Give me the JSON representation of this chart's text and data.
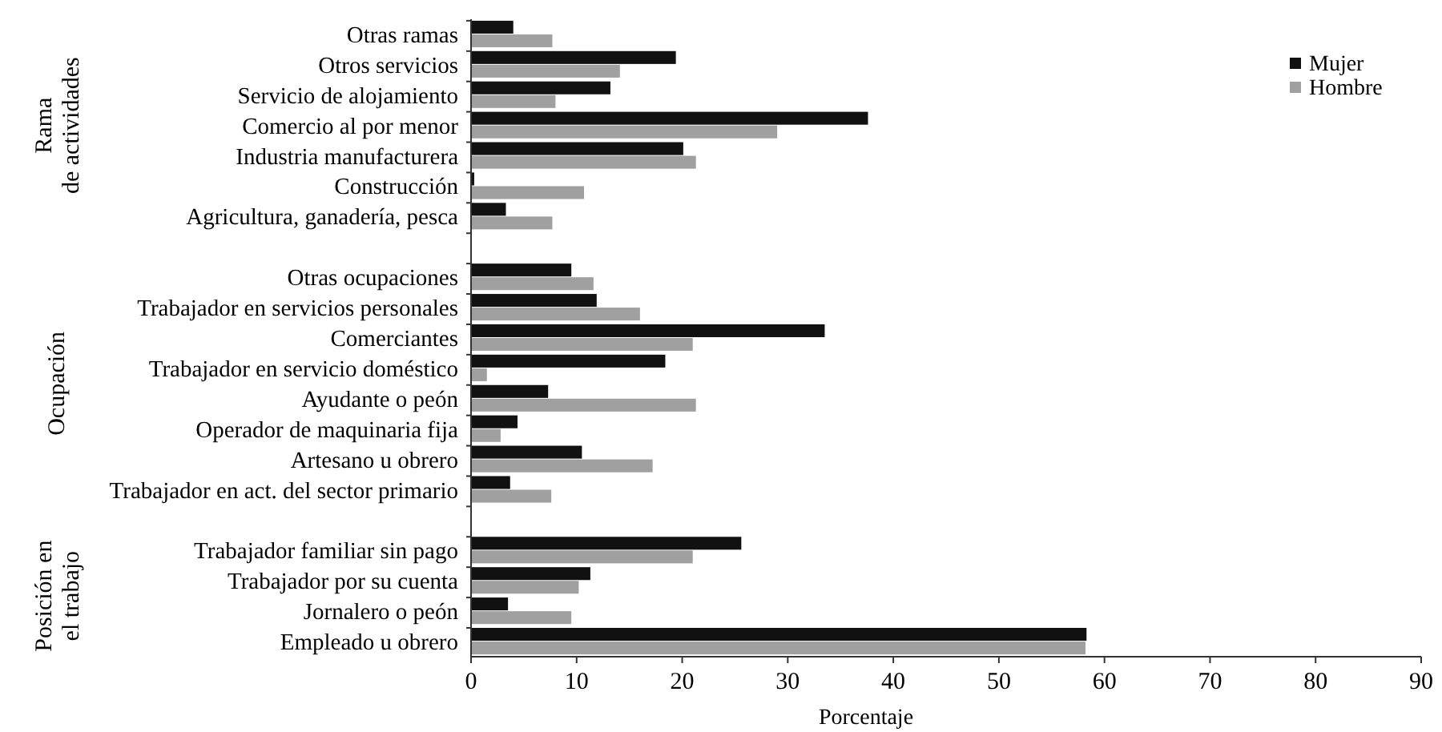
{
  "chart_data": {
    "type": "bar",
    "orientation": "horizontal",
    "xlabel": "Porcentaje",
    "categories": [
      "Otras ramas",
      "Otros servicios",
      "Servicio de alojamiento",
      "Comercio al por menor",
      "Industria manufacturera",
      "Construcción",
      "Agricultura, ganadería, pesca",
      null,
      "Otras ocupaciones",
      "Trabajador en servicios personales",
      "Comerciantes",
      "Trabajador en servicio doméstico",
      "Ayudante o peón",
      "Operador de maquinaria fija",
      "Artesano u obrero",
      "Trabajador en act. del sector primario",
      null,
      "Trabajador familiar sin pago",
      "Trabajador por su cuenta",
      "Jornalero o peón",
      "Empleado u obrero"
    ],
    "series": [
      {
        "name": "Mujer",
        "color": "#111111",
        "values": [
          4.0,
          19.4,
          13.2,
          37.6,
          20.1,
          0.3,
          3.3,
          null,
          9.5,
          11.9,
          33.5,
          18.4,
          7.3,
          4.4,
          10.5,
          3.7,
          null,
          25.6,
          11.3,
          3.5,
          58.3
        ]
      },
      {
        "name": "Hombre",
        "color": "#a0a0a0",
        "values": [
          7.7,
          14.1,
          8.0,
          29.0,
          21.3,
          10.7,
          7.7,
          null,
          11.6,
          16.0,
          21.0,
          1.5,
          21.3,
          2.8,
          17.2,
          7.6,
          null,
          21.0,
          10.2,
          9.5,
          58.2
        ]
      }
    ],
    "xlim": [
      0,
      90
    ],
    "xticks": [
      0,
      10,
      20,
      30,
      40,
      50,
      60,
      70,
      80,
      90
    ],
    "annotations": [
      "Rama\nde actividades",
      "Ocupación",
      "Posición en\nel trabajo"
    ],
    "legend": "top right",
    "grid": false
  }
}
